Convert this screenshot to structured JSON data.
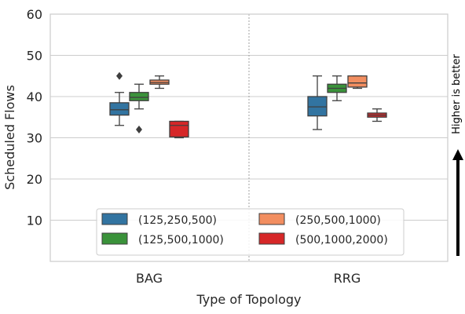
{
  "chart_data": {
    "type": "box",
    "title": "",
    "xlabel": "Type of Topology",
    "ylabel": "Scheduled Flows",
    "ylim": [
      0,
      60
    ],
    "yticks": [
      10,
      20,
      30,
      40,
      50,
      60
    ],
    "grid": true,
    "categories": [
      "BAG",
      "RRG"
    ],
    "legend": {
      "placement": "lower-center",
      "columns": 2
    },
    "annotation": "Higher is better",
    "series": [
      {
        "name": "(125,250,500)",
        "color": "#3274a1",
        "boxes": [
          {
            "whisker_low": 33,
            "q1": 35.5,
            "median": 36.8,
            "q3": 38.5,
            "whisker_high": 41,
            "outliers": [
              45
            ]
          },
          {
            "whisker_low": 32,
            "q1": 35.3,
            "median": 37.5,
            "q3": 40,
            "whisker_high": 45,
            "outliers": []
          }
        ]
      },
      {
        "name": "(125,500,1000)",
        "color": "#3a923a",
        "boxes": [
          {
            "whisker_low": 37,
            "q1": 39,
            "median": 39.8,
            "q3": 41,
            "whisker_high": 43,
            "outliers": [
              32
            ]
          },
          {
            "whisker_low": 39,
            "q1": 41,
            "median": 42,
            "q3": 43,
            "whisker_high": 45,
            "outliers": []
          }
        ]
      },
      {
        "name": "(250,500,1000)",
        "color": "#f28e60",
        "boxes": [
          {
            "whisker_low": 42,
            "q1": 43,
            "median": 43.4,
            "q3": 44,
            "whisker_high": 45,
            "outliers": []
          },
          {
            "whisker_low": 42,
            "q1": 42.3,
            "median": 43.3,
            "q3": 45,
            "whisker_high": 45,
            "outliers": []
          }
        ]
      },
      {
        "name": "(500,1000,2000)",
        "color": "#d62728",
        "boxes": [
          {
            "whisker_low": 30,
            "q1": 30.2,
            "median": 33,
            "q3": 34,
            "whisker_high": 34,
            "outliers": []
          },
          {
            "whisker_low": 34,
            "q1": 35,
            "median": 35.5,
            "q3": 36,
            "whisker_high": 37,
            "outliers": []
          }
        ]
      }
    ]
  }
}
